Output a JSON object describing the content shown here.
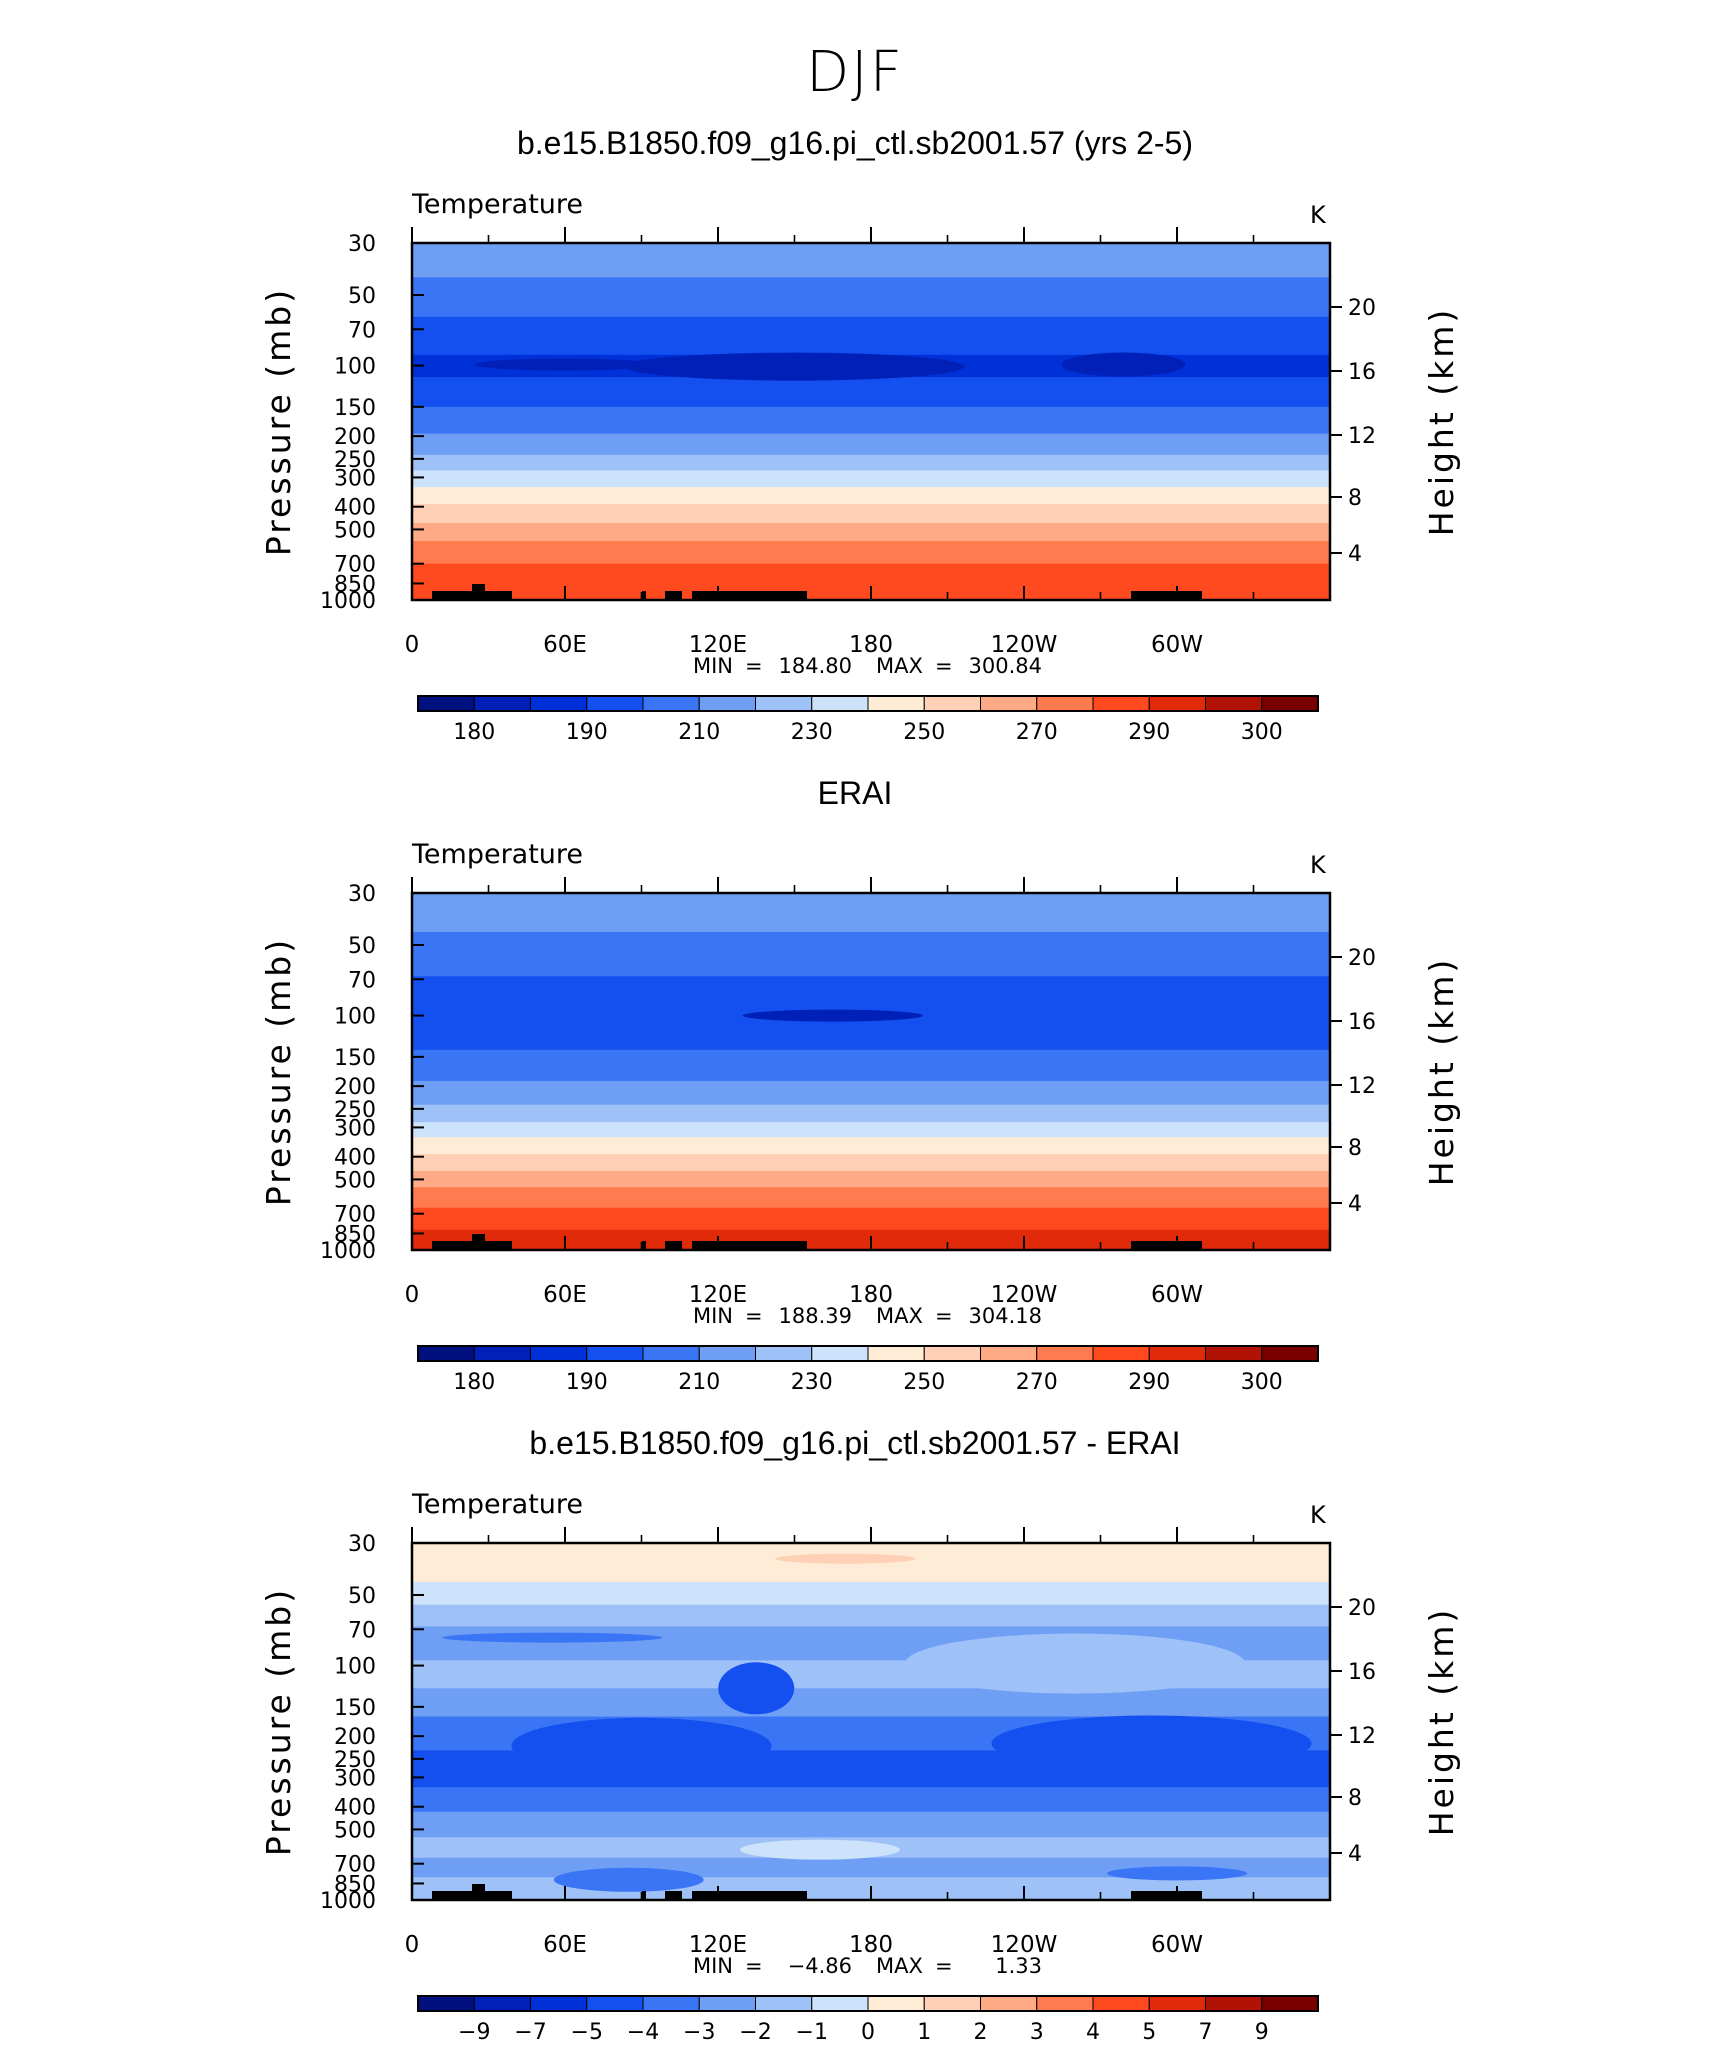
{
  "figure": {
    "title": "DJF"
  },
  "colors": {
    "abs_scale": [
      "#00107f",
      "#0020b8",
      "#0030d8",
      "#1450f0",
      "#3a75f5",
      "#6f9ff5",
      "#9ec1f8",
      "#cde2fb",
      "#ffecd6",
      "#ffd0b6",
      "#ffaa86",
      "#ff7a4f",
      "#ff4a1f",
      "#e02a0a",
      "#b01206",
      "#7a0000"
    ],
    "diff_scale": [
      "#00107f",
      "#0020b8",
      "#0030d8",
      "#1450f0",
      "#3a75f5",
      "#6f9ff5",
      "#9ec1f8",
      "#cde2fb",
      "#ffecd6",
      "#ffd0b6",
      "#ffaa86",
      "#ff7a4f",
      "#ff4a1f",
      "#e02a0a",
      "#b01206",
      "#7a0000"
    ],
    "topography": "#000000"
  },
  "chart_data": [
    {
      "type": "heatmap",
      "title": "b.e15.B1850.f09_g16.pi_ctl.sb2001.57 (yrs 2-5)",
      "subtitle": "Temperature",
      "units": "K",
      "ylabel": "Pressure (mb)",
      "ylabel_right": "Height (km)",
      "yticks": [
        "30",
        "50",
        "70",
        "100",
        "150",
        "200",
        "250",
        "300",
        "400",
        "500",
        "700",
        "850",
        "1000"
      ],
      "yticks_right": [
        "20",
        "16",
        "12",
        "8",
        "4"
      ],
      "xticks": [
        "0",
        "60E",
        "120E",
        "180",
        "120W",
        "60W"
      ],
      "stats": {
        "min_label": "MIN",
        "min": "184.80",
        "max_label": "MAX",
        "max": "300.84"
      },
      "colorbar_labels": [
        "180",
        "190",
        "210",
        "230",
        "250",
        "270",
        "290",
        "300"
      ],
      "layers": [
        {
          "p_top": 30,
          "p_bot": 42,
          "color_index": 5
        },
        {
          "p_top": 42,
          "p_bot": 62,
          "color_index": 4
        },
        {
          "p_top": 62,
          "p_bot": 90,
          "color_index": 3
        },
        {
          "p_top": 90,
          "p_bot": 112,
          "color_index": 2
        },
        {
          "p_top": 112,
          "p_bot": 150,
          "color_index": 3
        },
        {
          "p_top": 150,
          "p_bot": 195,
          "color_index": 4
        },
        {
          "p_top": 195,
          "p_bot": 240,
          "color_index": 5
        },
        {
          "p_top": 240,
          "p_bot": 280,
          "color_index": 6
        },
        {
          "p_top": 280,
          "p_bot": 330,
          "color_index": 7
        },
        {
          "p_top": 330,
          "p_bot": 390,
          "color_index": 8
        },
        {
          "p_top": 390,
          "p_bot": 470,
          "color_index": 9
        },
        {
          "p_top": 470,
          "p_bot": 560,
          "color_index": 10
        },
        {
          "p_top": 560,
          "p_bot": 700,
          "color_index": 11
        },
        {
          "p_top": 700,
          "p_bot": 1000,
          "color_index": 12
        }
      ]
    },
    {
      "type": "heatmap",
      "title": "ERAI",
      "subtitle": "Temperature",
      "units": "K",
      "ylabel": "Pressure (mb)",
      "ylabel_right": "Height (km)",
      "yticks": [
        "30",
        "50",
        "70",
        "100",
        "150",
        "200",
        "250",
        "300",
        "400",
        "500",
        "700",
        "850",
        "1000"
      ],
      "yticks_right": [
        "20",
        "16",
        "12",
        "8",
        "4"
      ],
      "xticks": [
        "0",
        "60E",
        "120E",
        "180",
        "120W",
        "60W"
      ],
      "stats": {
        "min_label": "MIN",
        "min": "188.39",
        "max_label": "MAX",
        "max": "304.18"
      },
      "colorbar_labels": [
        "180",
        "190",
        "210",
        "230",
        "250",
        "270",
        "290",
        "300"
      ],
      "layers": [
        {
          "p_top": 30,
          "p_bot": 44,
          "color_index": 5
        },
        {
          "p_top": 44,
          "p_bot": 68,
          "color_index": 4
        },
        {
          "p_top": 68,
          "p_bot": 140,
          "color_index": 3
        },
        {
          "p_top": 140,
          "p_bot": 190,
          "color_index": 4
        },
        {
          "p_top": 190,
          "p_bot": 240,
          "color_index": 5
        },
        {
          "p_top": 240,
          "p_bot": 285,
          "color_index": 6
        },
        {
          "p_top": 285,
          "p_bot": 330,
          "color_index": 7
        },
        {
          "p_top": 330,
          "p_bot": 390,
          "color_index": 8
        },
        {
          "p_top": 390,
          "p_bot": 460,
          "color_index": 9
        },
        {
          "p_top": 460,
          "p_bot": 540,
          "color_index": 10
        },
        {
          "p_top": 540,
          "p_bot": 660,
          "color_index": 11
        },
        {
          "p_top": 660,
          "p_bot": 820,
          "color_index": 12
        },
        {
          "p_top": 820,
          "p_bot": 1000,
          "color_index": 13
        }
      ]
    },
    {
      "type": "heatmap",
      "title": "b.e15.B1850.f09_g16.pi_ctl.sb2001.57 - ERAI",
      "subtitle": "Temperature",
      "units": "K",
      "ylabel": "Pressure (mb)",
      "ylabel_right": "Height (km)",
      "yticks": [
        "30",
        "50",
        "70",
        "100",
        "150",
        "200",
        "250",
        "300",
        "400",
        "500",
        "700",
        "850",
        "1000"
      ],
      "yticks_right": [
        "20",
        "16",
        "12",
        "8",
        "4"
      ],
      "xticks": [
        "0",
        "60E",
        "120E",
        "180",
        "120W",
        "60W"
      ],
      "stats": {
        "min_label": "MIN",
        "min": "−4.86",
        "max_label": "MAX",
        "max": "1.33"
      },
      "colorbar_labels": [
        "−9",
        "−7",
        "−5",
        "−4",
        "−3",
        "−2",
        "−1",
        "0",
        "1",
        "2",
        "3",
        "4",
        "5",
        "7",
        "9"
      ],
      "layers": [
        {
          "p_top": 30,
          "p_bot": 44,
          "color_index": 8
        },
        {
          "p_top": 44,
          "p_bot": 55,
          "color_index": 7
        },
        {
          "p_top": 55,
          "p_bot": 68,
          "color_index": 6
        },
        {
          "p_top": 68,
          "p_bot": 95,
          "color_index": 5
        },
        {
          "p_top": 95,
          "p_bot": 125,
          "color_index": 6
        },
        {
          "p_top": 125,
          "p_bot": 165,
          "color_index": 5
        },
        {
          "p_top": 165,
          "p_bot": 230,
          "color_index": 4
        },
        {
          "p_top": 230,
          "p_bot": 330,
          "color_index": 3
        },
        {
          "p_top": 330,
          "p_bot": 420,
          "color_index": 4
        },
        {
          "p_top": 420,
          "p_bot": 540,
          "color_index": 5
        },
        {
          "p_top": 540,
          "p_bot": 660,
          "color_index": 6
        },
        {
          "p_top": 660,
          "p_bot": 800,
          "color_index": 5
        },
        {
          "p_top": 800,
          "p_bot": 1000,
          "color_index": 6
        }
      ]
    }
  ]
}
